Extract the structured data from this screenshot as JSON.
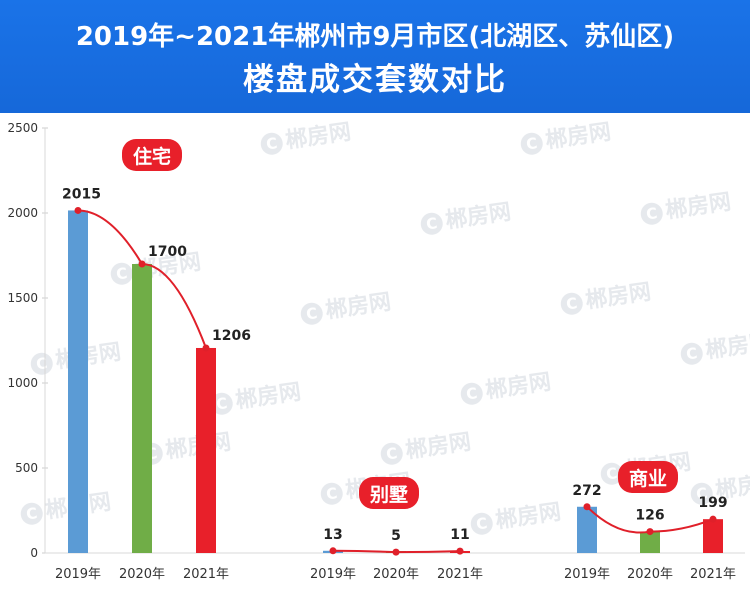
{
  "title_line1": "2019年~2021年郴州市9月市区(北湖区、苏仙区)",
  "title_line2": "楼盘成交套数对比",
  "watermark": "郴房网",
  "colors": {
    "header": "#1a73e8",
    "bar_2019": "#5b9bd5",
    "bar_2020": "#70ad47",
    "bar_2021": "#e8202a",
    "trend": "#e0202a",
    "axis_text": "#333333"
  },
  "chart_data": {
    "type": "bar",
    "ylim": [
      0,
      2500
    ],
    "yticks": [
      "0",
      "500",
      "1000",
      "1500",
      "2000",
      "2500"
    ],
    "categories": [
      "2019年",
      "2020年",
      "2021年"
    ],
    "groups": [
      {
        "name": "住宅",
        "values": [
          2015,
          1700,
          1206
        ]
      },
      {
        "name": "别墅",
        "values": [
          13,
          5,
          11
        ]
      },
      {
        "name": "商业",
        "values": [
          272,
          126,
          199
        ]
      }
    ]
  }
}
